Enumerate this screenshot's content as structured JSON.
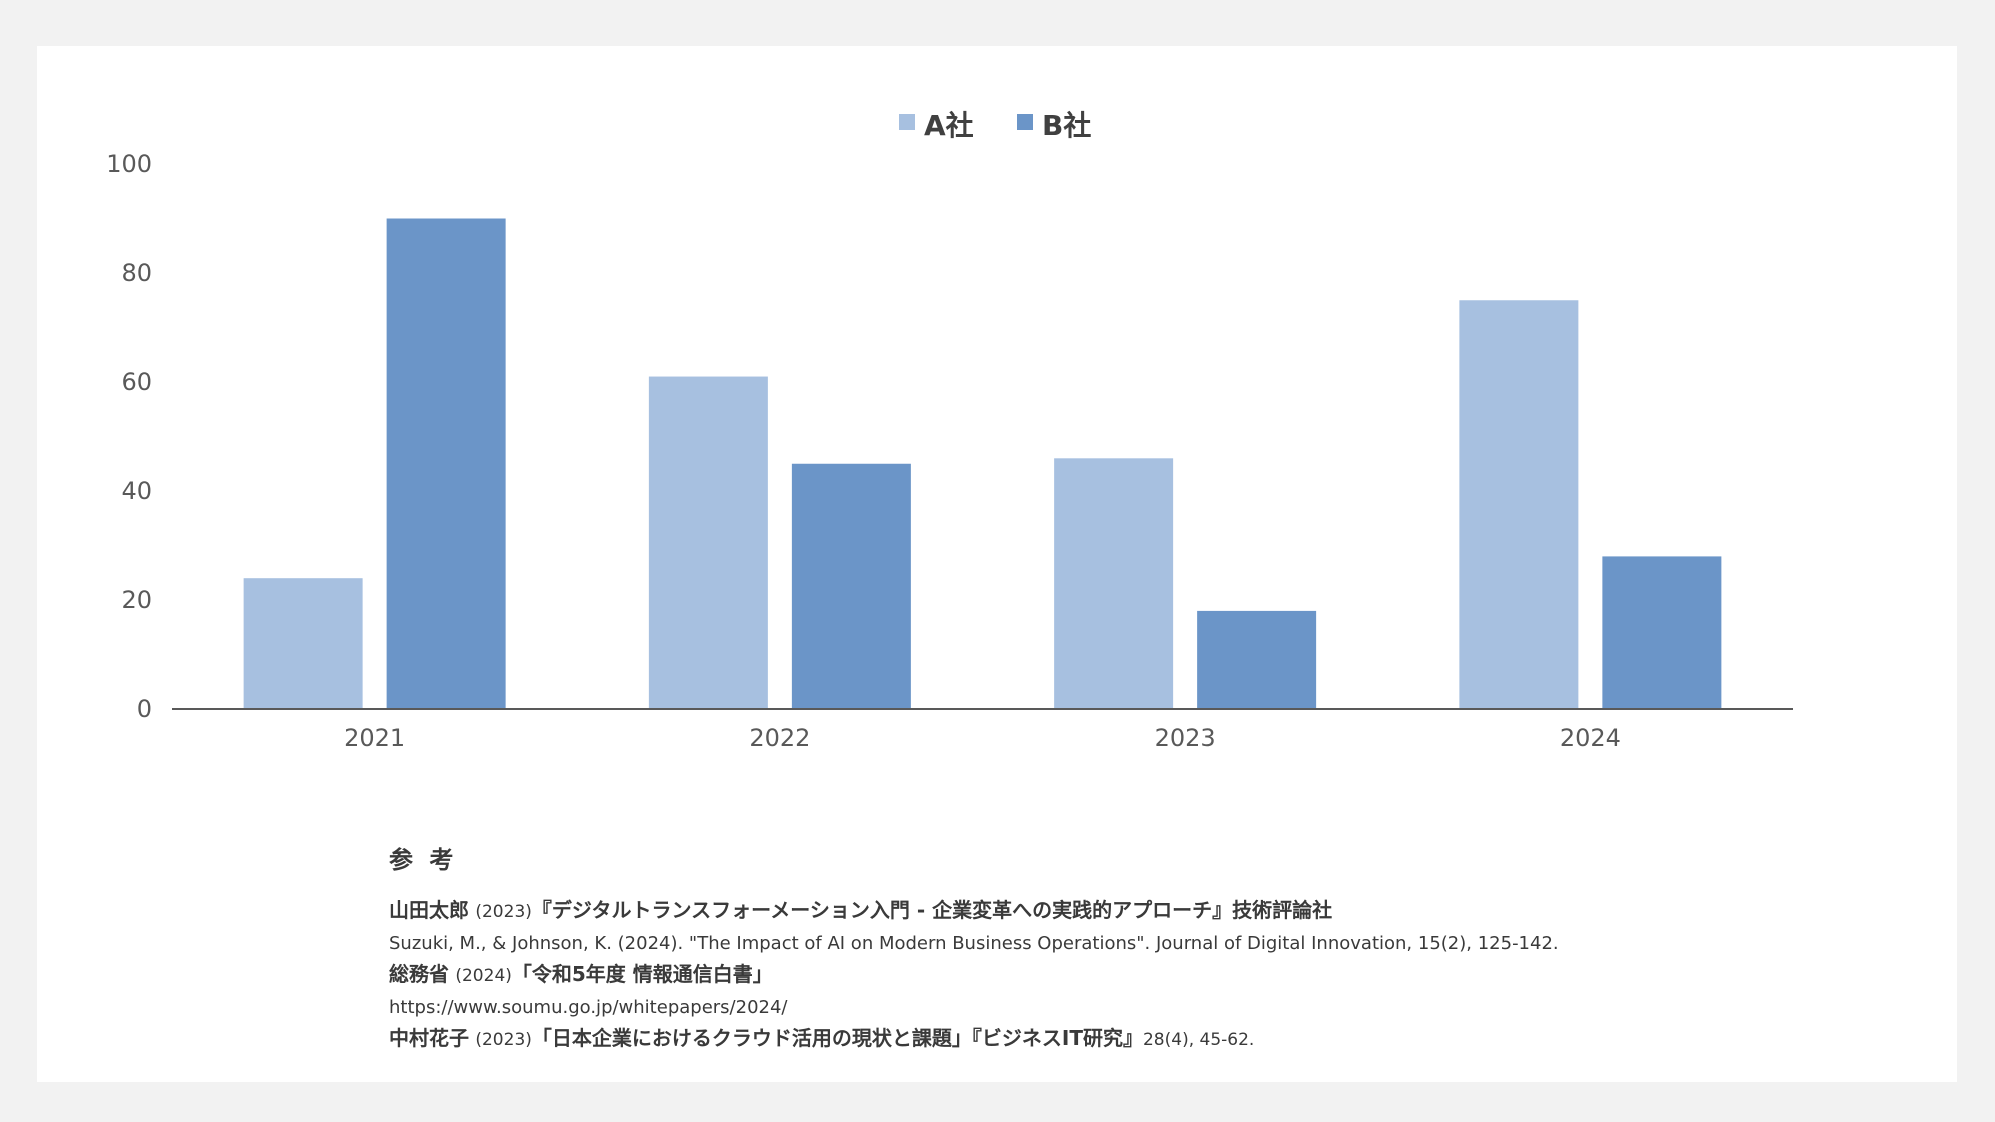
{
  "chart_data": {
    "type": "bar",
    "categories": [
      "2021",
      "2022",
      "2023",
      "2024"
    ],
    "series": [
      {
        "name": "A社",
        "values": [
          24,
          61,
          46,
          75
        ],
        "color": "#a7c0e0"
      },
      {
        "name": "B社",
        "values": [
          90,
          45,
          18,
          28
        ],
        "color": "#6b95c8"
      }
    ],
    "ylim": [
      0,
      100
    ],
    "yticks": [
      0,
      20,
      40,
      60,
      80,
      100
    ],
    "legend_position": "top-center",
    "grid": false
  },
  "references": {
    "heading": "参 考",
    "items": [
      {
        "author": "山田太郎",
        "year": "(2023)",
        "title": "『デジタルトランスフォーメーション入門 - 企業変革への実践的アプローチ』技術評論社"
      },
      {
        "text": "Suzuki, M., & Johnson, K. (2024). \"The Impact of AI on Modern Business Operations\". Journal of Digital Innovation, 15(2), 125-142."
      },
      {
        "author": "総務省",
        "year": "(2024)",
        "title": "「令和5年度 情報通信白書」"
      },
      {
        "text": "https://www.soumu.go.jp/whitepapers/2024/"
      },
      {
        "author": "中村花子",
        "year": "(2023)",
        "title": "「日本企業におけるクラウド活用の現状と課題」『ビジネスIT研究』",
        "suffix": "28(4), 45-62."
      }
    ]
  }
}
